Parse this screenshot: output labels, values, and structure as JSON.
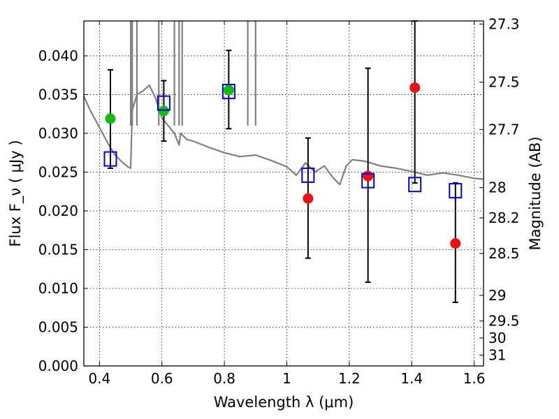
{
  "chart_data": {
    "type": "scatter",
    "title": "",
    "xlabel": "Wavelength  λ (μm)",
    "ylabel": "Flux  F_ν  ( μJy )",
    "ylabel_right": "Magnitude (AB)",
    "xlim": [
      0.35,
      1.63
    ],
    "ylim": [
      0.0,
      0.0445
    ],
    "grid": true,
    "x_ticks": [
      0.4,
      0.6,
      0.8,
      1.0,
      1.2,
      1.4,
      1.6
    ],
    "x_tick_labels": [
      "0.4",
      "0.6",
      "0.8",
      "1",
      "1.2",
      "1.4",
      "1.6"
    ],
    "y_ticks": [
      0.0,
      0.005,
      0.01,
      0.015,
      0.02,
      0.025,
      0.03,
      0.035,
      0.04
    ],
    "y_tick_labels": [
      "0.000",
      "0.005",
      "0.010",
      "0.015",
      "0.020",
      "0.025",
      "0.030",
      "0.035",
      "0.040"
    ],
    "right_axis_ticks": [
      {
        "label": "27.3",
        "flux": 0.0441
      },
      {
        "label": "27.5",
        "flux": 0.0366
      },
      {
        "label": "27.7",
        "flux": 0.0305
      },
      {
        "label": "28",
        "flux": 0.023
      },
      {
        "label": "28.2",
        "flux": 0.0191
      },
      {
        "label": "28.5",
        "flux": 0.0145
      },
      {
        "label": "29",
        "flux": 0.0091
      },
      {
        "label": "29.5",
        "flux": 0.0058
      },
      {
        "label": "30",
        "flux": 0.0036
      },
      {
        "label": "31",
        "flux": 0.0014
      }
    ],
    "colors": {
      "observed_optical": "#11bb11",
      "observed_nir": "#ee1111",
      "model": "#0000dd",
      "spectrum": "#808080",
      "errorbar": "#000000"
    },
    "series": [
      {
        "kind": "observed_optical",
        "marker": "circle",
        "x": [
          0.435,
          0.606,
          0.814
        ],
        "y": [
          0.0319,
          0.0329,
          0.0356
        ],
        "yerr_low": [
          0.0255,
          0.029,
          0.0306
        ],
        "yerr_high": [
          0.0382,
          0.0368,
          0.0407
        ]
      },
      {
        "kind": "observed_nir",
        "marker": "circle",
        "x": [
          1.068,
          1.26,
          1.41,
          1.54
        ],
        "y": [
          0.0216,
          0.0245,
          0.0359,
          0.0158
        ],
        "yerr_low": [
          0.0139,
          0.0108,
          0.0236,
          0.0082
        ],
        "yerr_high": [
          0.0294,
          0.0384,
          0.0445,
          0.0236
        ]
      },
      {
        "kind": "model",
        "marker": "open-square",
        "x": [
          0.435,
          0.606,
          0.814,
          1.068,
          1.26,
          1.41,
          1.54
        ],
        "y": [
          0.0267,
          0.0339,
          0.0354,
          0.0246,
          0.0239,
          0.0234,
          0.0226
        ]
      }
    ],
    "spectrum": {
      "x": [
        0.35,
        0.37,
        0.39,
        0.41,
        0.43,
        0.45,
        0.47,
        0.49,
        0.5,
        0.505,
        0.52,
        0.54,
        0.56,
        0.58,
        0.6,
        0.62,
        0.64,
        0.655,
        0.66,
        0.68,
        0.7,
        0.75,
        0.8,
        0.85,
        0.9,
        0.95,
        1.0,
        1.03,
        1.06,
        1.09,
        1.12,
        1.15,
        1.17,
        1.19,
        1.21,
        1.25,
        1.3,
        1.35,
        1.4,
        1.45,
        1.5,
        1.55,
        1.6,
        1.63
      ],
      "y": [
        0.0348,
        0.033,
        0.0315,
        0.03,
        0.0285,
        0.0272,
        0.0264,
        0.0257,
        0.0255,
        0.033,
        0.035,
        0.0355,
        0.0362,
        0.0345,
        0.032,
        0.031,
        0.03,
        0.0285,
        0.03,
        0.0292,
        0.029,
        0.0282,
        0.0275,
        0.027,
        0.0272,
        0.0265,
        0.0257,
        0.0246,
        0.0262,
        0.025,
        0.0258,
        0.0242,
        0.0234,
        0.0258,
        0.0266,
        0.0264,
        0.0258,
        0.0255,
        0.0251,
        0.0246,
        0.0249,
        0.0246,
        0.0242,
        0.0241
      ]
    },
    "emission_lines": [
      {
        "x": 0.5,
        "y": 0.0445
      },
      {
        "x": 0.505,
        "y": 0.0445
      },
      {
        "x": 0.52,
        "y": 0.0445
      },
      {
        "x": 0.59,
        "y": 0.0445
      },
      {
        "x": 0.64,
        "y": 0.0445
      },
      {
        "x": 0.655,
        "y": 0.0445
      },
      {
        "x": 0.665,
        "y": 0.0445
      },
      {
        "x": 0.875,
        "y": 0.0445
      },
      {
        "x": 0.9,
        "y": 0.0445
      }
    ]
  }
}
